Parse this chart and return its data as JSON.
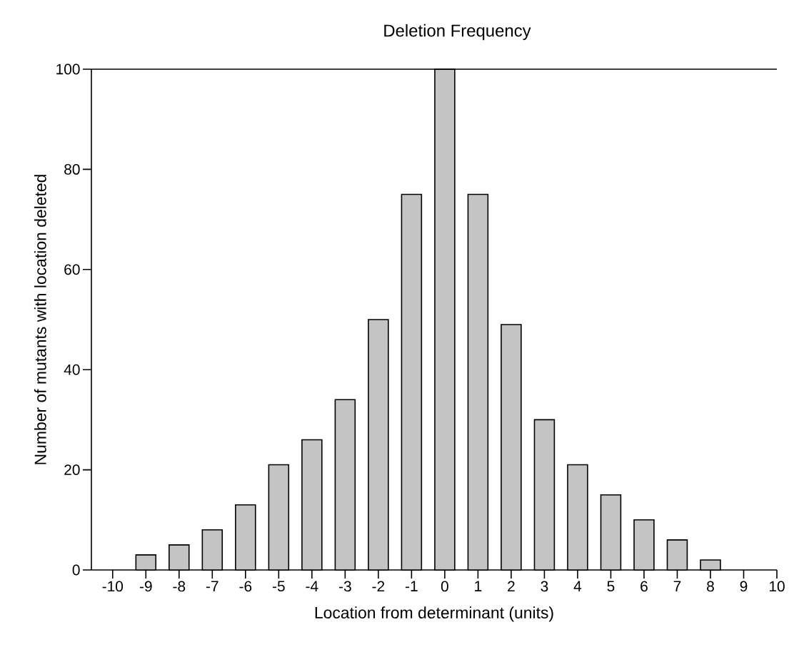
{
  "chart_data": {
    "type": "bar",
    "title": "Deletion Frequency",
    "xlabel": "Location from determinant (units)",
    "ylabel": "Number of mutants with location deleted",
    "categories": [
      "-10",
      "-9",
      "-8",
      "-7",
      "-6",
      "-5",
      "-4",
      "-3",
      "-2",
      "-1",
      "0",
      "1",
      "2",
      "3",
      "4",
      "5",
      "6",
      "7",
      "8",
      "9",
      "10"
    ],
    "values": [
      null,
      3,
      5,
      8,
      13,
      21,
      26,
      34,
      50,
      75,
      100,
      75,
      49,
      30,
      21,
      15,
      10,
      6,
      2,
      null,
      null
    ],
    "color": "#c4c4c4",
    "ylim": [
      0,
      100
    ],
    "yticks": [
      0,
      20,
      40,
      60,
      80,
      100
    ],
    "grid": false
  }
}
